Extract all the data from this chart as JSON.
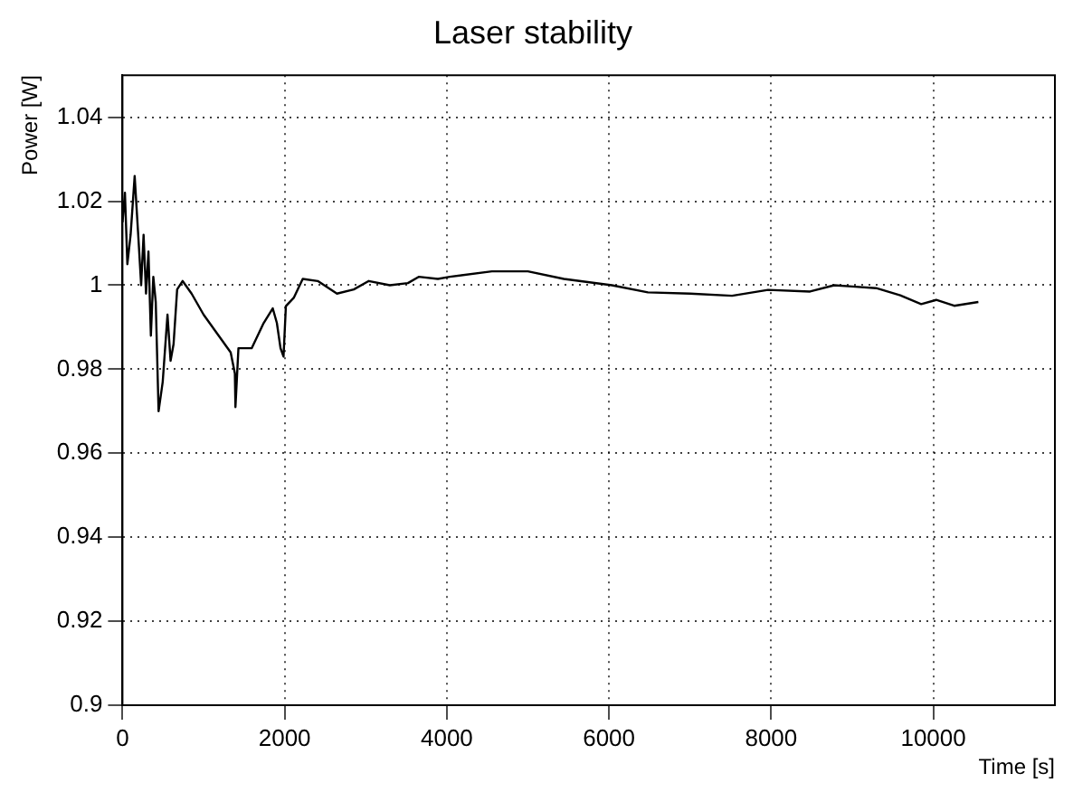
{
  "chart_data": {
    "type": "line",
    "title": "Laser stability",
    "xlabel": "Time [s]",
    "ylabel": "Power [W]",
    "x": [
      0,
      30,
      60,
      100,
      150,
      200,
      230,
      260,
      290,
      320,
      350,
      380,
      410,
      445,
      496,
      555,
      593,
      630,
      674,
      741,
      852,
      1000,
      1186,
      1334,
      1386,
      1393,
      1430,
      1593,
      1741,
      1853,
      1904,
      1949,
      1986,
      2015,
      2112,
      2223,
      2408,
      2645,
      2853,
      3038,
      3297,
      3520,
      3653,
      3890,
      4038,
      4556,
      5000,
      5444,
      6036,
      6480,
      7000,
      7518,
      7962,
      8480,
      8778,
      9000,
      9296,
      9592,
      9851,
      10036,
      10258,
      10556
    ],
    "series": [
      {
        "color": "#000000",
        "values": [
          1.015,
          1.022,
          1.005,
          1.012,
          1.026,
          1.01,
          1.0,
          1.012,
          0.998,
          1.008,
          0.988,
          1.002,
          0.996,
          0.97,
          0.977,
          0.993,
          0.982,
          0.986,
          0.999,
          1.001,
          0.998,
          0.993,
          0.988,
          0.984,
          0.979,
          0.971,
          0.985,
          0.985,
          0.991,
          0.9945,
          0.991,
          0.985,
          0.983,
          0.995,
          0.997,
          1.0015,
          1.001,
          0.998,
          0.999,
          1.001,
          1.0,
          1.0005,
          1.002,
          1.0015,
          1.002,
          1.0033,
          1.0033,
          1.0015,
          1.0,
          0.9983,
          0.998,
          0.9975,
          0.9989,
          0.9985,
          1.0,
          0.9997,
          0.9993,
          0.9976,
          0.9955,
          0.9965,
          0.9951,
          0.996
        ]
      }
    ],
    "xlim": [
      0,
      11500
    ],
    "xticks": [
      0,
      2000,
      4000,
      6000,
      8000,
      10000
    ],
    "ylim": [
      0.9,
      1.05
    ],
    "yticks": [
      0.9,
      0.92,
      0.94,
      0.96,
      0.98,
      {
        "value": 1,
        "label": "1"
      },
      1.02,
      1.04
    ],
    "grid": true,
    "legend": false,
    "marker": "none",
    "line_style": "solid"
  }
}
